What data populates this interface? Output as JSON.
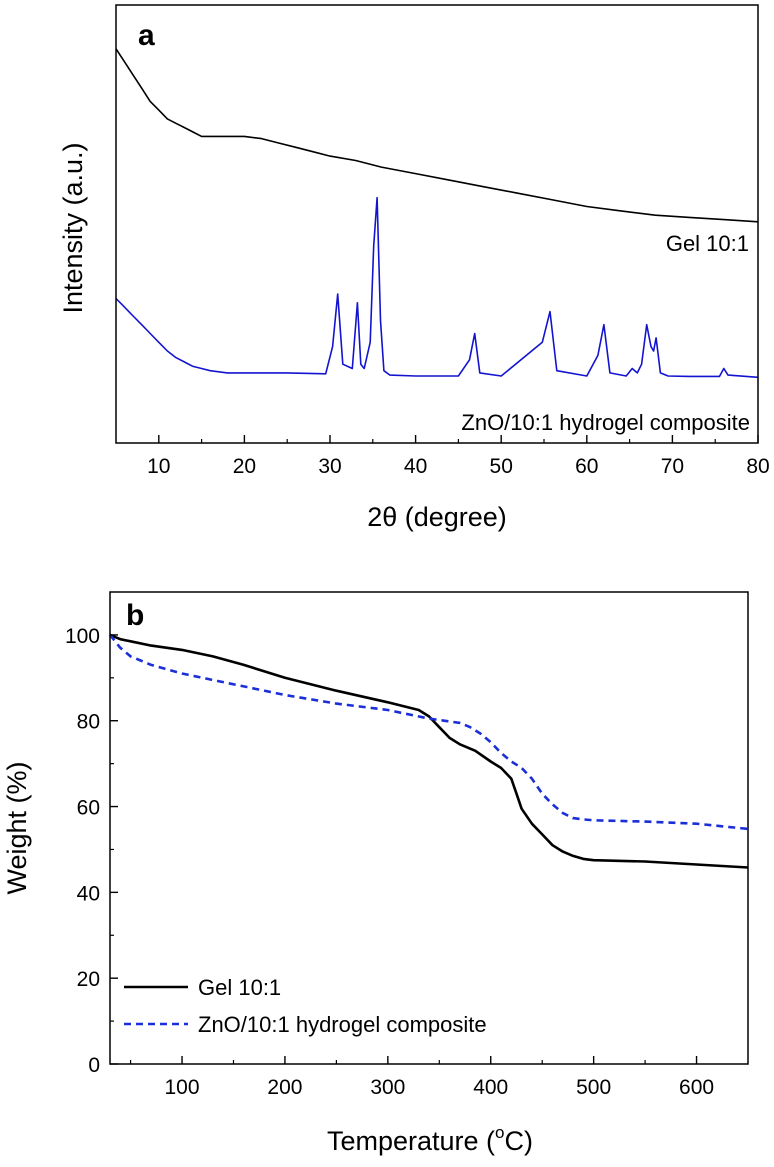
{
  "chart_data": [
    {
      "panel": "a",
      "type": "line",
      "xlabel": "2θ (degree)",
      "ylabel": "Intensity (a.u.)",
      "xlim": [
        5,
        80
      ],
      "ylim": [
        0,
        100
      ],
      "xticks": [
        10,
        20,
        30,
        40,
        50,
        60,
        70,
        80
      ],
      "y_tick_labels": false,
      "grid": false,
      "series": [
        {
          "name": "Gel 10:1",
          "color": "#000000",
          "style": "solid",
          "label_position": "right",
          "x": [
            5,
            6,
            7,
            8,
            9,
            10,
            11,
            12,
            13,
            14,
            15,
            16,
            18,
            20,
            22,
            24,
            26,
            28,
            30,
            33,
            36,
            40,
            44,
            48,
            52,
            56,
            60,
            64,
            68,
            72,
            76,
            80
          ],
          "y": [
            90,
            87,
            84,
            81,
            78,
            76,
            74,
            73,
            72,
            71,
            70,
            70,
            70,
            70,
            69.5,
            68.5,
            67.5,
            66.5,
            65.5,
            64.5,
            63,
            61.5,
            60,
            58.5,
            57,
            55.5,
            54,
            53,
            52,
            51.5,
            51,
            50.5
          ]
        },
        {
          "name": "ZnO/10:1 hydrogel composite",
          "color": "#1414d0",
          "style": "solid",
          "label_position": "bottom-right",
          "x": [
            5,
            6,
            7,
            8,
            9,
            10,
            11,
            12,
            13,
            14,
            15,
            16,
            18,
            20,
            25,
            29.5,
            30.3,
            30.9,
            31.5,
            32.6,
            33.2,
            33.6,
            34,
            34.7,
            35.1,
            35.5,
            35.9,
            36.3,
            37,
            40,
            45,
            46.3,
            46.9,
            47.5,
            50,
            54.8,
            55.7,
            56.5,
            60,
            61.3,
            62,
            62.7,
            64.6,
            65.3,
            65.9,
            66.4,
            67,
            67.5,
            67.8,
            68.1,
            68.6,
            69.5,
            72,
            75.5,
            76,
            76.5,
            80
          ],
          "y": [
            33,
            31,
            29,
            27,
            25,
            23,
            21,
            19.5,
            18.5,
            17.5,
            17,
            16.5,
            16,
            16,
            16,
            15.8,
            22,
            34,
            18,
            17,
            32,
            18,
            17,
            23,
            45,
            56,
            28,
            16.5,
            15.5,
            15.3,
            15.3,
            19,
            25,
            16,
            15.3,
            23,
            30,
            16.5,
            15.3,
            20,
            27,
            16,
            15.3,
            17,
            16,
            18,
            27,
            22,
            21,
            24,
            16,
            15.3,
            15.2,
            15.2,
            17,
            15.5,
            15
          ]
        }
      ]
    },
    {
      "panel": "b",
      "type": "line",
      "xlabel": "Temperature (°C)",
      "xlabel_main": "Temperature (",
      "xlabel_sup": "o",
      "xlabel_end": "C)",
      "ylabel": "Weight (%)",
      "xlim": [
        30,
        650
      ],
      "ylim": [
        0,
        110
      ],
      "xticks": [
        100,
        200,
        300,
        400,
        500,
        600
      ],
      "yticks": [
        0,
        20,
        40,
        60,
        80,
        100
      ],
      "grid": false,
      "legend": "bottom-left",
      "series": [
        {
          "name": "Gel 10:1",
          "color": "#000000",
          "style": "solid",
          "x": [
            30,
            40,
            50,
            70,
            100,
            130,
            160,
            200,
            250,
            300,
            330,
            340,
            350,
            360,
            370,
            385,
            400,
            410,
            420,
            425,
            430,
            440,
            450,
            460,
            470,
            480,
            490,
            500,
            550,
            600,
            650
          ],
          "y": [
            100,
            99,
            98.5,
            97.5,
            96.5,
            95,
            93,
            90,
            87,
            84.3,
            82.5,
            81,
            78.5,
            76,
            74.5,
            73,
            70.5,
            69,
            66.5,
            63,
            59.5,
            56,
            53.5,
            51,
            49.5,
            48.5,
            47.8,
            47.5,
            47.2,
            46.5,
            45.8
          ]
        },
        {
          "name": "ZnO/10:1 hydrogel composite",
          "color": "#1b2fd8",
          "style": "dashed",
          "x": [
            30,
            40,
            50,
            70,
            100,
            130,
            160,
            200,
            250,
            300,
            340,
            370,
            380,
            390,
            400,
            410,
            420,
            430,
            440,
            450,
            460,
            470,
            480,
            490,
            500,
            550,
            600,
            650
          ],
          "y": [
            100,
            97,
            95,
            93,
            91,
            89.5,
            88,
            86,
            84,
            82.5,
            80.5,
            79.5,
            78.5,
            77,
            75,
            72.5,
            70.5,
            69,
            66.5,
            63,
            60.5,
            58.5,
            57.3,
            57,
            56.8,
            56.5,
            56,
            54.8
          ]
        }
      ]
    }
  ]
}
